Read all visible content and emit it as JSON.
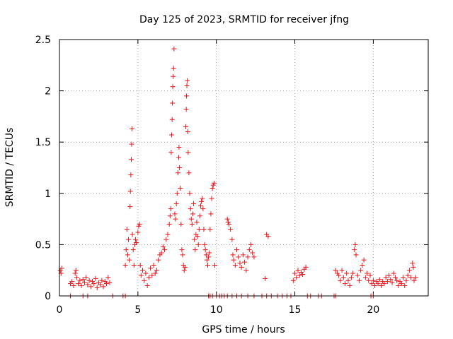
{
  "chart_data": {
    "type": "scatter",
    "title": "Day 125 of 2023, SRMTID for receiver jfng",
    "xlabel": "GPS time / hours",
    "ylabel": "SRMTID / TECUs",
    "xlim": [
      0,
      23.5
    ],
    "ylim": [
      0,
      2.5
    ],
    "x_ticks": [
      0,
      5,
      10,
      15,
      20
    ],
    "x_tick_labels": [
      "0",
      "5",
      "10",
      "15",
      "20"
    ],
    "y_ticks": [
      0,
      0.5,
      1,
      1.5,
      2,
      2.5
    ],
    "y_tick_labels": [
      "0",
      "0.5",
      "1",
      "1.5",
      "2",
      "2.5"
    ],
    "grid": true,
    "marker": "plus",
    "marker_color": "#e8141a",
    "series": [
      {
        "name": "SRMTID",
        "points": [
          [
            0.05,
            0.25
          ],
          [
            0.1,
            0.22
          ],
          [
            0.15,
            0.27
          ],
          [
            0.7,
            0.12
          ],
          [
            0.8,
            0.14
          ],
          [
            0.9,
            0.1
          ],
          [
            1.0,
            0.22
          ],
          [
            1.05,
            0.25
          ],
          [
            1.1,
            0.18
          ],
          [
            1.2,
            0.12
          ],
          [
            1.3,
            0.15
          ],
          [
            1.4,
            0.1
          ],
          [
            1.5,
            0.16
          ],
          [
            1.6,
            0.13
          ],
          [
            1.7,
            0.18
          ],
          [
            1.8,
            0.11
          ],
          [
            1.9,
            0.15
          ],
          [
            2.0,
            0.09
          ],
          [
            2.1,
            0.14
          ],
          [
            2.2,
            0.12
          ],
          [
            2.3,
            0.17
          ],
          [
            2.4,
            0.08
          ],
          [
            2.5,
            0.13
          ],
          [
            2.6,
            0.11
          ],
          [
            2.7,
            0.15
          ],
          [
            2.8,
            0.09
          ],
          [
            2.9,
            0.14
          ],
          [
            3.0,
            0.12
          ],
          [
            3.1,
            0.18
          ],
          [
            3.2,
            0.13
          ],
          [
            4.2,
            0.3
          ],
          [
            4.25,
            0.45
          ],
          [
            4.3,
            0.65
          ],
          [
            4.35,
            0.4
          ],
          [
            4.4,
            0.55
          ],
          [
            4.45,
            0.35
          ],
          [
            4.5,
            0.87
          ],
          [
            4.52,
            1.02
          ],
          [
            4.55,
            1.18
          ],
          [
            4.58,
            1.33
          ],
          [
            4.6,
            1.48
          ],
          [
            4.62,
            1.63
          ],
          [
            4.65,
            0.6
          ],
          [
            4.7,
            0.45
          ],
          [
            4.75,
            0.3
          ],
          [
            4.8,
            0.5
          ],
          [
            4.85,
            0.55
          ],
          [
            4.9,
            0.52
          ],
          [
            5.0,
            0.62
          ],
          [
            5.05,
            0.68
          ],
          [
            5.1,
            0.7
          ],
          [
            5.15,
            0.3
          ],
          [
            5.2,
            0.2
          ],
          [
            5.3,
            0.25
          ],
          [
            5.4,
            0.15
          ],
          [
            5.5,
            0.22
          ],
          [
            5.6,
            0.1
          ],
          [
            5.7,
            0.18
          ],
          [
            5.8,
            0.27
          ],
          [
            5.9,
            0.2
          ],
          [
            6.0,
            0.3
          ],
          [
            6.1,
            0.22
          ],
          [
            6.2,
            0.25
          ],
          [
            6.3,
            0.35
          ],
          [
            6.4,
            0.4
          ],
          [
            6.5,
            0.42
          ],
          [
            6.6,
            0.48
          ],
          [
            6.7,
            0.45
          ],
          [
            6.8,
            0.55
          ],
          [
            6.9,
            0.6
          ],
          [
            7.0,
            0.7
          ],
          [
            7.05,
            0.78
          ],
          [
            7.1,
            0.85
          ],
          [
            7.12,
            1.4
          ],
          [
            7.15,
            1.57
          ],
          [
            7.18,
            1.72
          ],
          [
            7.2,
            1.88
          ],
          [
            7.22,
            2.04
          ],
          [
            7.25,
            2.14
          ],
          [
            7.27,
            2.22
          ],
          [
            7.3,
            2.41
          ],
          [
            7.35,
            0.8
          ],
          [
            7.4,
            0.75
          ],
          [
            7.45,
            0.9
          ],
          [
            7.5,
            1.0
          ],
          [
            7.55,
            1.2
          ],
          [
            7.6,
            1.35
          ],
          [
            7.62,
            1.45
          ],
          [
            7.65,
            1.25
          ],
          [
            7.7,
            1.05
          ],
          [
            7.75,
            0.7
          ],
          [
            7.8,
            0.45
          ],
          [
            7.85,
            0.4
          ],
          [
            7.9,
            0.3
          ],
          [
            7.95,
            0.25
          ],
          [
            8.0,
            0.28
          ],
          [
            8.05,
            1.65
          ],
          [
            8.08,
            1.82
          ],
          [
            8.1,
            1.95
          ],
          [
            8.12,
            2.05
          ],
          [
            8.15,
            2.1
          ],
          [
            8.18,
            1.6
          ],
          [
            8.2,
            1.4
          ],
          [
            8.25,
            1.2
          ],
          [
            8.3,
            1.0
          ],
          [
            8.35,
            0.85
          ],
          [
            8.4,
            0.75
          ],
          [
            8.45,
            0.7
          ],
          [
            8.5,
            0.8
          ],
          [
            8.55,
            0.9
          ],
          [
            8.6,
            0.55
          ],
          [
            8.65,
            0.45
          ],
          [
            8.7,
            0.6
          ],
          [
            8.75,
            0.72
          ],
          [
            8.8,
            0.58
          ],
          [
            8.85,
            0.5
          ],
          [
            8.9,
            0.65
          ],
          [
            8.95,
            0.78
          ],
          [
            9.0,
            0.88
          ],
          [
            9.05,
            0.92
          ],
          [
            9.1,
            0.95
          ],
          [
            9.15,
            0.85
          ],
          [
            9.2,
            0.65
          ],
          [
            9.25,
            0.5
          ],
          [
            9.3,
            0.45
          ],
          [
            9.35,
            0.4
          ],
          [
            9.4,
            0.35
          ],
          [
            9.45,
            0.3
          ],
          [
            9.5,
            0.38
          ],
          [
            9.55,
            0.42
          ],
          [
            9.6,
            0.65
          ],
          [
            9.65,
            0.8
          ],
          [
            9.7,
            0.95
          ],
          [
            9.75,
            1.05
          ],
          [
            9.8,
            1.08
          ],
          [
            9.85,
            1.1
          ],
          [
            9.9,
            0.3
          ],
          [
            10.7,
            0.75
          ],
          [
            10.75,
            0.72
          ],
          [
            10.8,
            0.7
          ],
          [
            10.9,
            0.65
          ],
          [
            11.0,
            0.55
          ],
          [
            11.05,
            0.4
          ],
          [
            11.1,
            0.35
          ],
          [
            11.2,
            0.3
          ],
          [
            11.3,
            0.45
          ],
          [
            11.4,
            0.38
          ],
          [
            11.5,
            0.32
          ],
          [
            11.6,
            0.28
          ],
          [
            11.7,
            0.4
          ],
          [
            11.8,
            0.33
          ],
          [
            11.9,
            0.25
          ],
          [
            12.0,
            0.38
          ],
          [
            12.1,
            0.45
          ],
          [
            12.2,
            0.5
          ],
          [
            12.3,
            0.42
          ],
          [
            12.4,
            0.38
          ],
          [
            13.1,
            0.17
          ],
          [
            13.2,
            0.6
          ],
          [
            13.3,
            0.58
          ],
          [
            14.9,
            0.15
          ],
          [
            15.0,
            0.22
          ],
          [
            15.1,
            0.18
          ],
          [
            15.2,
            0.25
          ],
          [
            15.3,
            0.2
          ],
          [
            15.4,
            0.23
          ],
          [
            15.5,
            0.21
          ],
          [
            15.6,
            0.26
          ],
          [
            15.7,
            0.28
          ],
          [
            17.6,
            0.25
          ],
          [
            17.7,
            0.22
          ],
          [
            17.8,
            0.2
          ],
          [
            17.9,
            0.15
          ],
          [
            18.0,
            0.25
          ],
          [
            18.1,
            0.18
          ],
          [
            18.2,
            0.12
          ],
          [
            18.3,
            0.22
          ],
          [
            18.4,
            0.15
          ],
          [
            18.5,
            0.1
          ],
          [
            18.6,
            0.18
          ],
          [
            18.7,
            0.22
          ],
          [
            18.8,
            0.45
          ],
          [
            18.85,
            0.5
          ],
          [
            18.9,
            0.4
          ],
          [
            19.0,
            0.2
          ],
          [
            19.1,
            0.15
          ],
          [
            19.2,
            0.25
          ],
          [
            19.3,
            0.3
          ],
          [
            19.4,
            0.35
          ],
          [
            19.5,
            0.18
          ],
          [
            19.6,
            0.22
          ],
          [
            19.7,
            0.15
          ],
          [
            19.8,
            0.2
          ],
          [
            19.9,
            0.12
          ],
          [
            20.0,
            0.15
          ],
          [
            20.1,
            0.1
          ],
          [
            20.2,
            0.14
          ],
          [
            20.3,
            0.12
          ],
          [
            20.4,
            0.16
          ],
          [
            20.5,
            0.1
          ],
          [
            20.6,
            0.14
          ],
          [
            20.7,
            0.12
          ],
          [
            20.8,
            0.18
          ],
          [
            20.9,
            0.14
          ],
          [
            21.0,
            0.2
          ],
          [
            21.1,
            0.16
          ],
          [
            21.2,
            0.13
          ],
          [
            21.3,
            0.22
          ],
          [
            21.4,
            0.18
          ],
          [
            21.5,
            0.15
          ],
          [
            21.6,
            0.1
          ],
          [
            21.7,
            0.14
          ],
          [
            21.8,
            0.12
          ],
          [
            21.9,
            0.18
          ],
          [
            22.0,
            0.1
          ],
          [
            22.1,
            0.15
          ],
          [
            22.2,
            0.2
          ],
          [
            22.3,
            0.25
          ],
          [
            22.4,
            0.18
          ],
          [
            22.5,
            0.32
          ],
          [
            22.55,
            0.28
          ],
          [
            22.6,
            0.15
          ],
          [
            22.7,
            0.18
          ],
          [
            0.7,
            0.0
          ],
          [
            1.5,
            0.0
          ],
          [
            1.8,
            0.0
          ],
          [
            3.4,
            0.0
          ],
          [
            4.05,
            0.0
          ],
          [
            4.2,
            0.0
          ],
          [
            9.5,
            0.0
          ],
          [
            9.6,
            0.0
          ],
          [
            9.75,
            0.0
          ],
          [
            10.0,
            0.0
          ],
          [
            10.2,
            0.0
          ],
          [
            10.35,
            0.0
          ],
          [
            10.5,
            0.0
          ],
          [
            10.7,
            0.0
          ],
          [
            11.0,
            0.0
          ],
          [
            11.3,
            0.0
          ],
          [
            11.6,
            0.0
          ],
          [
            12.0,
            0.0
          ],
          [
            12.4,
            0.0
          ],
          [
            12.9,
            0.0
          ],
          [
            13.2,
            0.0
          ],
          [
            13.5,
            0.0
          ],
          [
            13.9,
            0.0
          ],
          [
            14.2,
            0.0
          ],
          [
            14.5,
            0.0
          ],
          [
            14.75,
            0.0
          ],
          [
            15.8,
            0.0
          ],
          [
            16.0,
            0.0
          ],
          [
            16.5,
            0.0
          ],
          [
            16.7,
            0.0
          ],
          [
            17.5,
            0.0
          ],
          [
            17.6,
            0.0
          ],
          [
            19.85,
            0.0
          ],
          [
            20.0,
            0.0
          ]
        ]
      }
    ]
  }
}
